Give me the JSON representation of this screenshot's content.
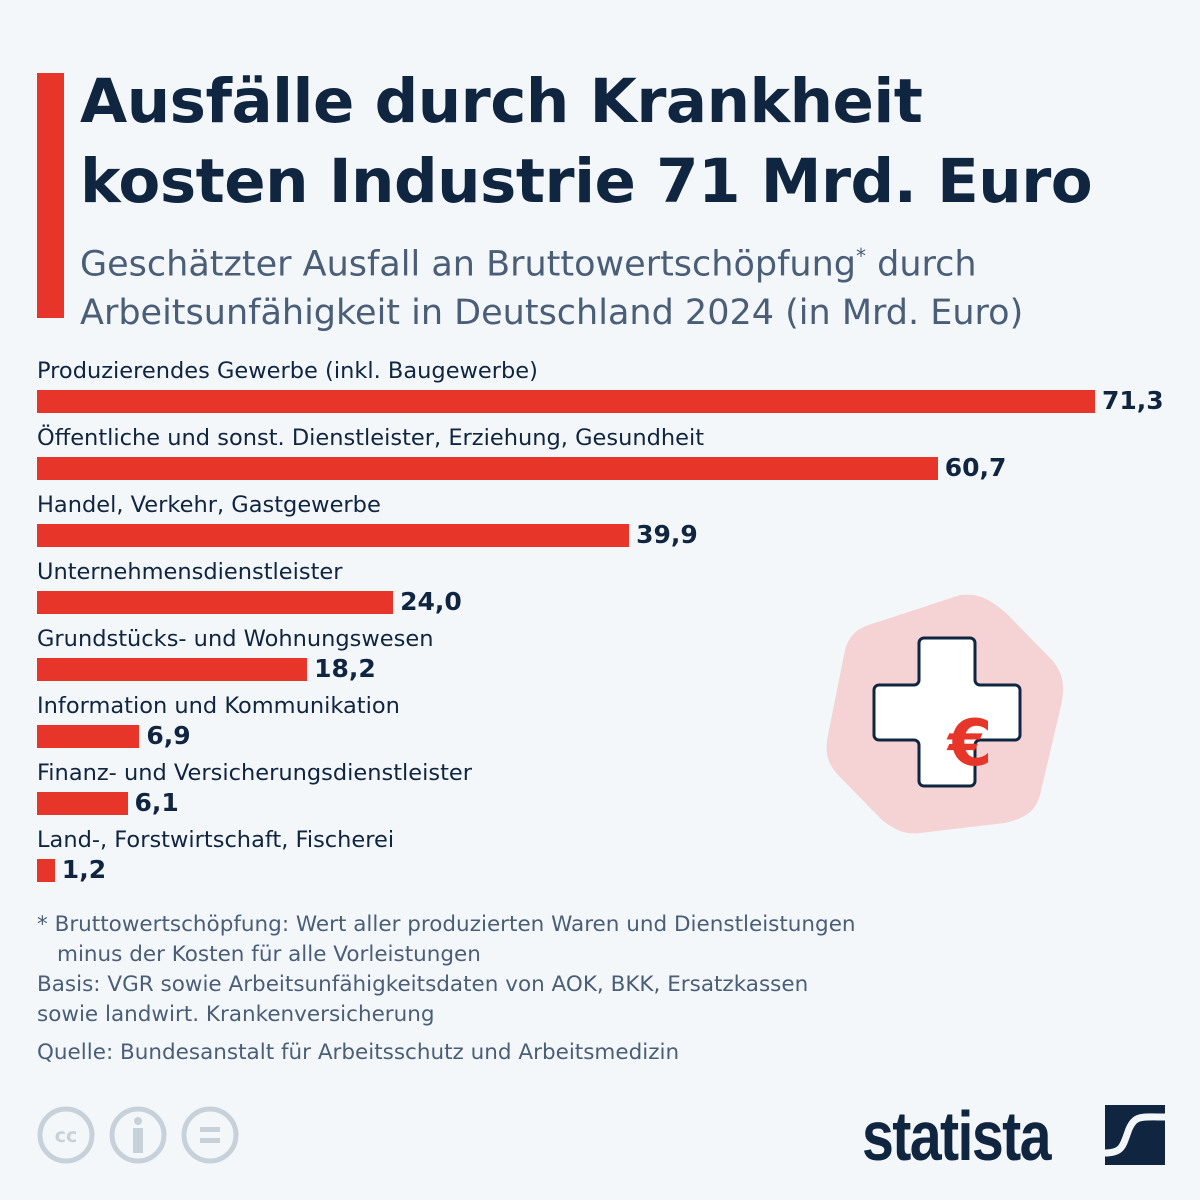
{
  "title_line1": "Ausfälle durch Krankheit",
  "title_line2": "kosten Industrie 71 Mrd. Euro",
  "subtitle_line1": "Geschätzter Ausfall an Bruttowertschöpfung",
  "subtitle_star": "*",
  "subtitle_line1_end": " durch",
  "subtitle_line2": "Arbeitsunfähigkeit in Deutschland 2024 (in Mrd. Euro)",
  "chart_data": {
    "type": "bar",
    "orientation": "horizontal",
    "categories": [
      "Produzierendes Gewerbe (inkl. Baugewerbe)",
      "Öffentliche und sonst. Dienstleister, Erziehung, Gesundheit",
      "Handel, Verkehr, Gastgewerbe",
      "Unternehmensdienstleister",
      "Grundstücks- und Wohnungswesen",
      "Information und Kommunikation",
      "Finanz- und Versicherungsdienstleister",
      "Land-, Forstwirtschaft, Fischerei"
    ],
    "values": [
      71.3,
      60.7,
      39.9,
      24.0,
      18.2,
      6.9,
      6.1,
      1.2
    ],
    "value_labels": [
      "71,3",
      "60,7",
      "39,9",
      "24,0",
      "18,2",
      "6,9",
      "6,1",
      "1,2"
    ],
    "xlim": [
      0,
      71.3
    ],
    "grid": false,
    "bar_color": "#e8352a"
  },
  "notes": {
    "footnote_line1": "* Bruttowertschöpfung: Wert aller produzierten Waren und Dienstleistungen",
    "footnote_line2": "minus der Kosten für alle Vorleistungen",
    "basis_line1": "Basis: VGR sowie Arbeitsunfähigkeitsdaten von AOK, BKK, Ersatzkassen",
    "basis_line2": "sowie landwirt. Krankenversicherung",
    "source": "Quelle: Bundesanstalt für Arbeitsschutz und Arbeitsmedizin"
  },
  "icons": [
    "medical-cross-euro-icon",
    "cc-icon",
    "by-icon",
    "nd-icon"
  ],
  "logo": "statista",
  "colors": {
    "accent": "#e8352a",
    "text": "#0f2540",
    "subtext": "#4a5e78",
    "background": "#f4f7fa"
  }
}
